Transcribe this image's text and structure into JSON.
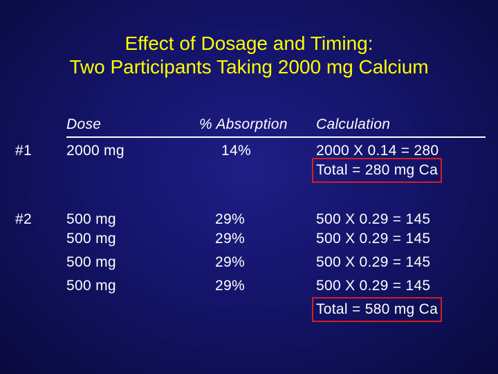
{
  "title": {
    "line1": "Effect of Dosage and Timing:",
    "line2": "Two Participants Taking 2000 mg Calcium"
  },
  "headers": {
    "dose": "Dose",
    "absorption": "% Absorption",
    "calculation": "Calculation"
  },
  "participants": [
    {
      "id": "#1",
      "doses": [
        "2000 mg"
      ],
      "absorptions": [
        "14%"
      ],
      "calculations": [
        "2000 X 0.14 = 280"
      ],
      "total": "Total = 280 mg Ca"
    },
    {
      "id": "#2",
      "doses": [
        "500 mg",
        "500 mg",
        "500 mg",
        "500 mg"
      ],
      "absorptions": [
        "29%",
        "29%",
        "29%",
        "29%"
      ],
      "calculations": [
        "500 X 0.29 = 145",
        "500 X 0.29 = 145",
        "500 X 0.29 = 145",
        "500 X 0.29 = 145"
      ],
      "total": "Total = 580 mg Ca"
    }
  ],
  "colors": {
    "title": "#ffff00",
    "text": "#ffffff",
    "highlight_box": "#d42020",
    "background": "#14146a"
  }
}
